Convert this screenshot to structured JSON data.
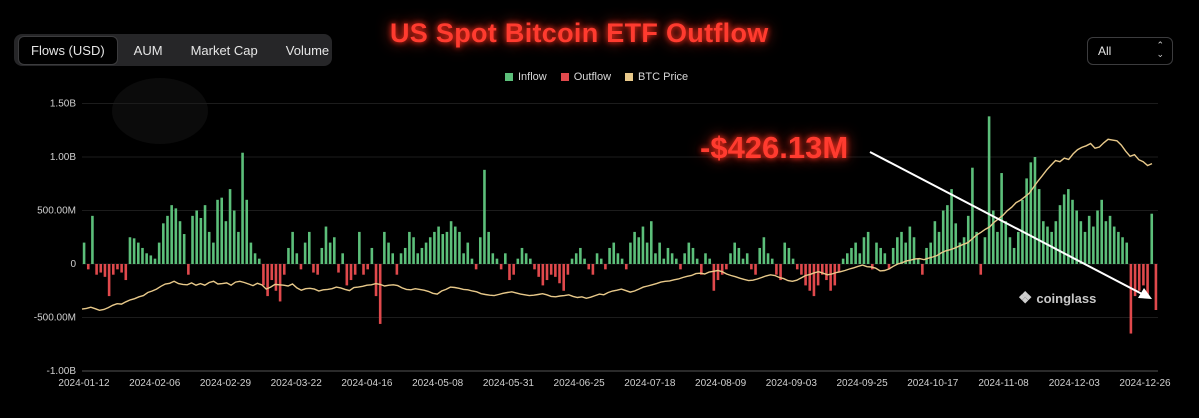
{
  "tabs": [
    {
      "label": "Flows (USD)",
      "active": true
    },
    {
      "label": "AUM"
    },
    {
      "label": "Market Cap"
    },
    {
      "label": "Volume"
    }
  ],
  "title": "US Spot Bitcoin ETF Outflow",
  "range_select": {
    "value": "All"
  },
  "annotation": "-$426.13M",
  "watermark": "coinglass",
  "colors": {
    "inflow": "#5cbf7a",
    "outflow": "#e0494c",
    "price": "#e8c98a",
    "title": "#ff3b2f"
  },
  "chart_data": {
    "type": "bar",
    "title": "US Spot Bitcoin ETF Outflow",
    "legend": [
      {
        "name": "Inflow",
        "color": "#5cbf7a"
      },
      {
        "name": "Outflow",
        "color": "#e0494c"
      },
      {
        "name": "BTC Price",
        "color": "#e8c98a"
      }
    ],
    "yticks": [
      {
        "v": 1.5,
        "label": "1.50B"
      },
      {
        "v": 1.0,
        "label": "1.00B"
      },
      {
        "v": 0.5,
        "label": "500.00M"
      },
      {
        "v": 0,
        "label": "0"
      },
      {
        "v": -0.5,
        "label": "-500.00M"
      },
      {
        "v": -1.0,
        "label": "-1.00B"
      }
    ],
    "ylim": [
      -1.0,
      1.5
    ],
    "unit": "USD billions",
    "xticks": [
      "2024-01-12",
      "2024-02-06",
      "2024-02-29",
      "2024-03-22",
      "2024-04-16",
      "2024-05-08",
      "2024-05-31",
      "2024-06-25",
      "2024-07-18",
      "2024-08-09",
      "2024-09-03",
      "2024-09-25",
      "2024-10-17",
      "2024-11-08",
      "2024-12-03",
      "2024-12-26"
    ],
    "flows": [
      0.2,
      -0.05,
      0.45,
      -0.1,
      -0.08,
      -0.12,
      -0.3,
      -0.1,
      -0.05,
      -0.08,
      -0.15,
      0.25,
      0.24,
      0.2,
      0.15,
      0.1,
      0.08,
      0.05,
      0.2,
      0.38,
      0.45,
      0.55,
      0.52,
      0.4,
      0.28,
      -0.1,
      0.45,
      0.5,
      0.43,
      0.55,
      0.3,
      0.2,
      0.6,
      0.62,
      0.4,
      0.7,
      0.5,
      0.3,
      1.04,
      0.6,
      0.2,
      0.1,
      0.05,
      -0.2,
      -0.3,
      -0.15,
      -0.25,
      -0.35,
      -0.1,
      0.15,
      0.3,
      0.1,
      -0.05,
      0.2,
      0.3,
      -0.08,
      -0.1,
      0.15,
      0.35,
      0.2,
      0.25,
      -0.08,
      0.1,
      -0.2,
      -0.15,
      -0.1,
      0.3,
      -0.1,
      -0.05,
      0.15,
      -0.3,
      -0.56,
      0.3,
      0.2,
      0.1,
      -0.1,
      0.1,
      0.15,
      0.3,
      0.25,
      0.1,
      0.15,
      0.2,
      0.25,
      0.3,
      0.35,
      0.28,
      0.3,
      0.4,
      0.35,
      0.3,
      0.1,
      0.2,
      0.05,
      -0.05,
      0.25,
      0.88,
      0.3,
      0.1,
      0.05,
      -0.05,
      0.1,
      -0.15,
      -0.1,
      0.05,
      0.15,
      0.1,
      0.05,
      -0.05,
      -0.12,
      -0.2,
      -0.15,
      -0.1,
      -0.12,
      -0.18,
      -0.25,
      -0.1,
      0.05,
      0.1,
      0.15,
      0.05,
      -0.05,
      -0.1,
      0.1,
      0.05,
      -0.05,
      0.15,
      0.2,
      0.1,
      0.05,
      -0.05,
      0.2,
      0.3,
      0.25,
      0.35,
      0.2,
      0.4,
      0.1,
      0.2,
      0.05,
      0.15,
      0.1,
      0.05,
      -0.05,
      0.1,
      0.2,
      0.15,
      0.05,
      -0.1,
      0.1,
      0.05,
      -0.25,
      -0.15,
      -0.1,
      -0.05,
      0.1,
      0.2,
      0.15,
      0.05,
      0.1,
      -0.05,
      -0.1,
      0.15,
      0.25,
      0.1,
      0.05,
      -0.1,
      -0.15,
      0.2,
      0.15,
      0.05,
      -0.05,
      -0.1,
      -0.2,
      -0.25,
      -0.3,
      -0.2,
      -0.1,
      -0.15,
      -0.25,
      -0.2,
      -0.08,
      0.05,
      0.1,
      0.15,
      0.2,
      0.1,
      0.25,
      0.3,
      -0.05,
      0.2,
      0.15,
      0.1,
      -0.05,
      0.15,
      0.25,
      0.3,
      0.2,
      0.35,
      0.25,
      0.05,
      -0.1,
      0.15,
      0.2,
      0.4,
      0.3,
      0.5,
      0.55,
      0.7,
      0.38,
      0.2,
      0.25,
      0.45,
      0.9,
      0.3,
      -0.1,
      0.25,
      1.38,
      0.5,
      0.3,
      0.85,
      0.4,
      0.25,
      0.15,
      0.3,
      0.6,
      0.8,
      0.95,
      1.0,
      0.7,
      0.4,
      0.35,
      0.3,
      0.4,
      0.55,
      0.65,
      0.7,
      0.6,
      0.5,
      0.4,
      0.3,
      0.45,
      0.35,
      0.5,
      0.6,
      0.4,
      0.45,
      0.35,
      0.3,
      0.25,
      0.2,
      -0.65,
      -0.3,
      -0.25,
      -0.2,
      -0.3,
      0.47,
      -0.43
    ],
    "btc_price": [
      0.23,
      0.25,
      0.28,
      0.24,
      0.2,
      0.22,
      0.27,
      0.33,
      0.37,
      0.36,
      0.42,
      0.47,
      0.5,
      0.55,
      0.58,
      0.66,
      0.7,
      0.75,
      0.82,
      0.88,
      0.9,
      0.95,
      0.89,
      0.87,
      0.86,
      0.91,
      0.85,
      0.89,
      0.85,
      0.92,
      0.95,
      0.88,
      0.89,
      0.91,
      0.85,
      0.93,
      0.95,
      0.92,
      0.88,
      0.84,
      0.9,
      0.86,
      0.75,
      0.8,
      0.87,
      0.86,
      0.85,
      0.83,
      0.88,
      0.78,
      0.72,
      0.76,
      0.77,
      0.75,
      0.7,
      0.73,
      0.74,
      0.76,
      0.8,
      0.78,
      0.74,
      0.71,
      0.79,
      0.8,
      0.82,
      0.85,
      0.86,
      0.89,
      0.87,
      0.83,
      0.85,
      0.86,
      0.84,
      0.78,
      0.74,
      0.73,
      0.76,
      0.74,
      0.72,
      0.69,
      0.64,
      0.62,
      0.7,
      0.74,
      0.8,
      0.79,
      0.77,
      0.74,
      0.73,
      0.7,
      0.68,
      0.63,
      0.61,
      0.59,
      0.58,
      0.61,
      0.64,
      0.66,
      0.68,
      0.65,
      0.62,
      0.6,
      0.58,
      0.59,
      0.61,
      0.63,
      0.6,
      0.56,
      0.55,
      0.57,
      0.58,
      0.6,
      0.56,
      0.53,
      0.55,
      0.51,
      0.54,
      0.58,
      0.62,
      0.6,
      0.66,
      0.7,
      0.72,
      0.75,
      0.71,
      0.67,
      0.7,
      0.75,
      0.8,
      0.83,
      0.86,
      0.89,
      0.93,
      0.95,
      0.96,
      0.99,
      1.01,
      1.05,
      1.08,
      1.1,
      1.15,
      1.16,
      1.14,
      1.19,
      1.21,
      1.23,
      1.2,
      1.14,
      1.1,
      1.07,
      1.03,
      1.0,
      0.97,
      0.98,
      1.01,
      1.05,
      1.09,
      1.12,
      1.1,
      1.05,
      1.02,
      0.97,
      0.95,
      0.98,
      1.04,
      1.1,
      1.13,
      1.17,
      1.2,
      1.16,
      1.12,
      1.14,
      1.18,
      1.2,
      1.23,
      1.27,
      1.3,
      1.34,
      1.37,
      1.33,
      1.32,
      1.29,
      1.22,
      1.23,
      1.27,
      1.34,
      1.4,
      1.43,
      1.48,
      1.5,
      1.53,
      1.54,
      1.51,
      1.55,
      1.58,
      1.62,
      1.69,
      1.74,
      1.77,
      1.81,
      1.86,
      1.91,
      1.95,
      2.05,
      2.15,
      2.22,
      2.3,
      2.36,
      2.48,
      2.57,
      2.66,
      2.78,
      2.87,
      2.99,
      3.05,
      3.14,
      3.23,
      3.39,
      3.55,
      3.69,
      3.84,
      3.96,
      4.08,
      4.05,
      4.14,
      4.11,
      4.25,
      4.36,
      4.42,
      4.46,
      4.52,
      4.4,
      4.43,
      4.54,
      4.63,
      4.61,
      4.59,
      4.48,
      4.32,
      4.19,
      4.23,
      4.1,
      4.05,
      3.95,
      4.0
    ],
    "btc_price_note": "BTC price plotted on hidden secondary axis (relative scale)"
  }
}
